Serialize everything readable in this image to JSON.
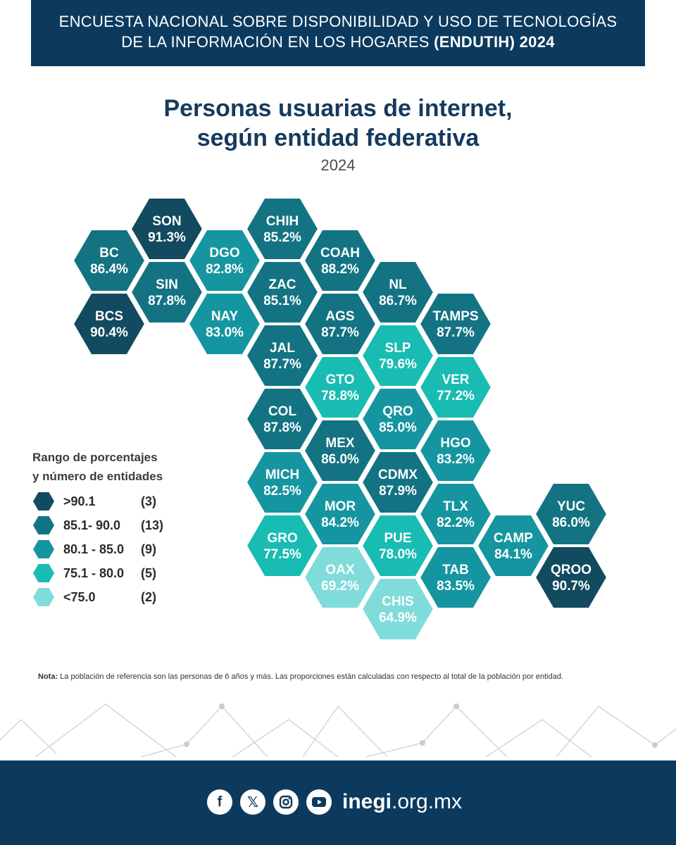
{
  "banner": {
    "line1": "ENCUESTA NACIONAL SOBRE DISPONIBILIDAD Y USO DE TECNOLOGÍAS",
    "line2_normal": "DE LA INFORMACIÓN EN LOS HOGARES ",
    "line2_bold": "(ENDUTIH) 2024"
  },
  "title_line1": "Personas usuarias de internet,",
  "title_line2": "según entidad federativa",
  "subtitle": "2024",
  "legend": {
    "title_line1": "Rango de porcentajes",
    "title_line2": "y número de entidades",
    "items": [
      {
        "label": ">90.1",
        "count": "(3)",
        "color": "#124a60"
      },
      {
        "label": "85.1- 90.0",
        "count": "(13)",
        "color": "#137383"
      },
      {
        "label": "80.1 - 85.0",
        "count": "(9)",
        "color": "#1595a0"
      },
      {
        "label": "75.1 - 80.0",
        "count": "(5)",
        "color": "#18bcb3"
      },
      {
        "label": "<75.0",
        "count": "(2)",
        "color": "#80dcda"
      }
    ]
  },
  "chart_data": {
    "type": "heatmap",
    "title": "Personas usuarias de internet, según entidad federativa",
    "subtitle": "2024",
    "unit": "%",
    "states": [
      {
        "code": "SON",
        "value": 91.3,
        "label": "91.3%",
        "col": 1,
        "row": 0
      },
      {
        "code": "CHIH",
        "value": 85.2,
        "label": "85.2%",
        "col": 3,
        "row": 0
      },
      {
        "code": "BC",
        "value": 86.4,
        "label": "86.4%",
        "col": 0,
        "row": 1
      },
      {
        "code": "DGO",
        "value": 82.8,
        "label": "82.8%",
        "col": 2,
        "row": 1
      },
      {
        "code": "COAH",
        "value": 88.2,
        "label": "88.2%",
        "col": 4,
        "row": 1
      },
      {
        "code": "SIN",
        "value": 87.8,
        "label": "87.8%",
        "col": 1,
        "row": 2
      },
      {
        "code": "ZAC",
        "value": 85.1,
        "label": "85.1%",
        "col": 3,
        "row": 2
      },
      {
        "code": "NL",
        "value": 86.7,
        "label": "86.7%",
        "col": 5,
        "row": 2
      },
      {
        "code": "BCS",
        "value": 90.4,
        "label": "90.4%",
        "col": 0,
        "row": 3
      },
      {
        "code": "NAY",
        "value": 83.0,
        "label": "83.0%",
        "col": 2,
        "row": 3
      },
      {
        "code": "AGS",
        "value": 87.7,
        "label": "87.7%",
        "col": 4,
        "row": 3
      },
      {
        "code": "TAMPS",
        "value": 87.7,
        "label": "87.7%",
        "col": 6,
        "row": 3
      },
      {
        "code": "JAL",
        "value": 87.7,
        "label": "87.7%",
        "col": 3,
        "row": 4
      },
      {
        "code": "SLP",
        "value": 79.6,
        "label": "79.6%",
        "col": 5,
        "row": 4
      },
      {
        "code": "GTO",
        "value": 78.8,
        "label": "78.8%",
        "col": 4,
        "row": 5
      },
      {
        "code": "VER",
        "value": 77.2,
        "label": "77.2%",
        "col": 6,
        "row": 5
      },
      {
        "code": "COL",
        "value": 87.8,
        "label": "87.8%",
        "col": 3,
        "row": 6
      },
      {
        "code": "QRO",
        "value": 85.0,
        "label": "85.0%",
        "col": 5,
        "row": 6
      },
      {
        "code": "MEX",
        "value": 86.0,
        "label": "86.0%",
        "col": 4,
        "row": 7
      },
      {
        "code": "HGO",
        "value": 83.2,
        "label": "83.2%",
        "col": 6,
        "row": 7
      },
      {
        "code": "MICH",
        "value": 82.5,
        "label": "82.5%",
        "col": 3,
        "row": 8
      },
      {
        "code": "CDMX",
        "value": 87.9,
        "label": "87.9%",
        "col": 5,
        "row": 8
      },
      {
        "code": "MOR",
        "value": 84.2,
        "label": "84.2%",
        "col": 4,
        "row": 9
      },
      {
        "code": "TLX",
        "value": 82.2,
        "label": "82.2%",
        "col": 6,
        "row": 9
      },
      {
        "code": "YUC",
        "value": 86.0,
        "label": "86.0%",
        "col": 8,
        "row": 9
      },
      {
        "code": "GRO",
        "value": 77.5,
        "label": "77.5%",
        "col": 3,
        "row": 10
      },
      {
        "code": "PUE",
        "value": 78.0,
        "label": "78.0%",
        "col": 5,
        "row": 10
      },
      {
        "code": "CAMP",
        "value": 84.1,
        "label": "84.1%",
        "col": 7,
        "row": 10
      },
      {
        "code": "OAX",
        "value": 69.2,
        "label": "69.2%",
        "col": 4,
        "row": 11
      },
      {
        "code": "TAB",
        "value": 83.5,
        "label": "83.5%",
        "col": 6,
        "row": 11
      },
      {
        "code": "QROO",
        "value": 90.7,
        "label": "90.7%",
        "col": 8,
        "row": 11
      },
      {
        "code": "CHIS",
        "value": 64.9,
        "label": "64.9%",
        "col": 5,
        "row": 12
      }
    ]
  },
  "note": {
    "label": "Nota:",
    "text": " La población de referencia son las personas de 6 años y más. Las proporciones están calculadas con respecto al total de la población por entidad."
  },
  "footer": {
    "icons": [
      "facebook-icon",
      "x-icon",
      "instagram-icon",
      "youtube-icon"
    ],
    "site_bold": "inegi",
    "site_rest": ".org.mx"
  }
}
